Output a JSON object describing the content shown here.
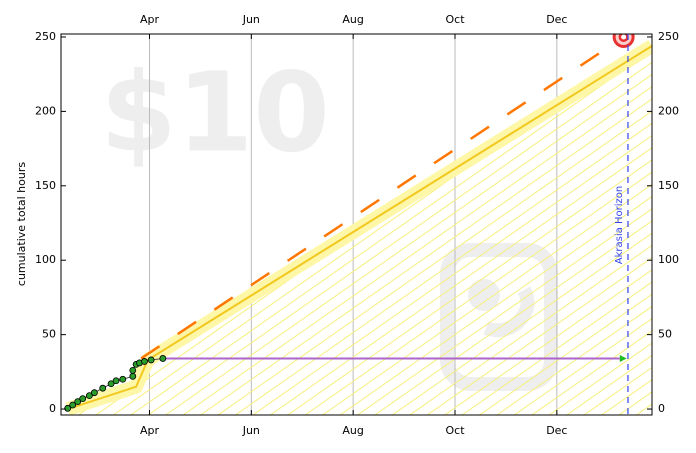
{
  "chart_data": {
    "type": "line",
    "watermark": "$10",
    "ylabel": "cumulative total hours",
    "annotation": "Akrasia Horizon",
    "horizon_x": 377.6,
    "xlim": [
      38,
      392
    ],
    "ylim": [
      -4,
      252
    ],
    "xticks": [
      {
        "value": 91,
        "label": "Apr"
      },
      {
        "value": 152,
        "label": "Jun"
      },
      {
        "value": 213,
        "label": "Aug"
      },
      {
        "value": 274,
        "label": "Oct"
      },
      {
        "value": 335,
        "label": "Dec"
      }
    ],
    "yticks": [
      0,
      50,
      100,
      150,
      200,
      250
    ],
    "grid": true,
    "series": [
      {
        "kind": "road",
        "color": "#f2c81e",
        "x": [
          42,
          83,
          90,
          392
        ],
        "values": [
          0,
          15,
          33,
          244
        ]
      },
      {
        "kind": "dashed",
        "color": "#ff7700",
        "x": [
          86,
          375
        ],
        "values": [
          34,
          250
        ]
      },
      {
        "kind": "projection",
        "color": "#aa66cc",
        "x": [
          99,
          372.7
        ],
        "values": [
          34,
          34
        ]
      },
      {
        "kind": "points",
        "color": "#2a9d2a",
        "x": [
          42,
          45,
          48,
          51,
          55,
          58,
          63,
          68,
          71,
          75,
          81,
          81,
          83,
          85,
          88,
          92,
          99
        ],
        "values": [
          0.5,
          2.7,
          5,
          7,
          9,
          11,
          14,
          17,
          19,
          20,
          22,
          26,
          30,
          31,
          32,
          33,
          34
        ]
      }
    ]
  }
}
